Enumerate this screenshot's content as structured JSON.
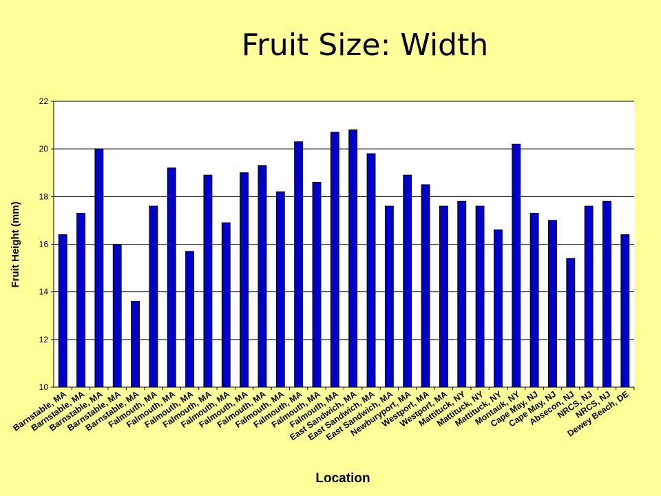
{
  "slide": {
    "title": "Fruit Size: Width"
  },
  "chart_data": {
    "type": "bar",
    "title": "Fruit Size: Width",
    "xlabel": "Location",
    "ylabel": "Fruit Height (mm)",
    "ylim": [
      10,
      22
    ],
    "yticks": [
      10,
      12,
      14,
      16,
      18,
      20,
      22
    ],
    "grid": "horizontal",
    "colors": {
      "bar": "#0000cc",
      "plot_bg": "#ffffff",
      "page_bg": "#ffff99"
    },
    "categories": [
      "Barnstable, MA",
      "Barnstable, MA",
      "Barnstable, MA",
      "Barnstable, MA",
      "Barnstable, MA",
      "Falmouth, MA",
      "Falmouth, MA",
      "Falmouth, MA",
      "Falmouth, MA",
      "Falmouth, MA",
      "Falmouth, MA",
      "Falmouth, MA",
      "Falmouth, MA",
      "Falmouth, MA",
      "Falmouth, MA",
      "Falmouth, MA",
      "East Sandwich, MA",
      "East Sandwich, MA",
      "East Sandwich, MA",
      "Newburyport, MA",
      "Westport, MA",
      "Westport, MA",
      "Mattituck, NY",
      "Mattituck, NY",
      "Mattituck, NY",
      "Montauk, NY",
      "Cape May, NJ",
      "Cape May, NJ",
      "Absecon, NJ",
      "NRCS, NJ",
      "NRCS, NJ",
      "Dewey Beach, DE"
    ],
    "values": [
      16.4,
      17.3,
      20.0,
      16.0,
      13.6,
      17.6,
      19.2,
      15.7,
      18.9,
      16.9,
      19.0,
      19.3,
      18.2,
      20.3,
      18.6,
      20.7,
      20.8,
      19.8,
      17.6,
      18.9,
      18.5,
      17.6,
      17.8,
      17.6,
      16.6,
      20.2,
      17.3,
      17.0,
      15.4,
      17.6,
      17.8,
      16.4
    ]
  }
}
